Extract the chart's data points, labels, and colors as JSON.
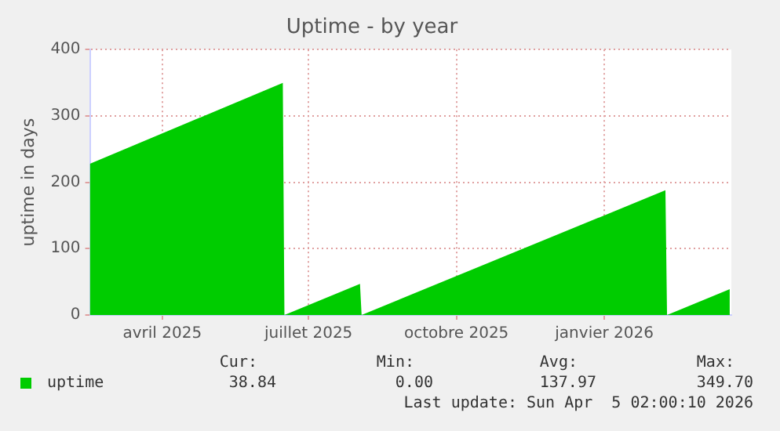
{
  "chart_data": {
    "type": "area",
    "title": "Uptime - by year",
    "ylabel": "uptime in days",
    "series": [
      {
        "name": "uptime",
        "color": "#00cc00",
        "x": [
          "2025-02-15",
          "2025-06-15",
          "2025-06-16",
          "2025-08-02",
          "2025-08-03",
          "2026-02-08",
          "2026-02-09",
          "2026-03-20"
        ],
        "values": [
          228,
          349.7,
          0,
          47,
          0,
          188,
          0,
          38.84
        ]
      }
    ],
    "xlim": [
      "2025-02-15",
      "2026-03-21"
    ],
    "xticks": [
      {
        "value": "2025-04-01",
        "label": "avril 2025"
      },
      {
        "value": "2025-07-01",
        "label": "juillet 2025"
      },
      {
        "value": "2025-10-01",
        "label": "octobre 2025"
      },
      {
        "value": "2026-01-01",
        "label": "janvier 2026"
      }
    ],
    "ylim": [
      0,
      400
    ],
    "yticks": [
      0,
      100,
      200,
      300,
      400
    ],
    "grid": true,
    "legend": "bottom left",
    "annotations": [
      "Cur:",
      "Min:",
      "Avg:",
      "Max:",
      "38.84",
      "0.00",
      "137.97",
      "349.70",
      "Last update: Sun Apr  5 02:00:10 2026"
    ]
  }
}
